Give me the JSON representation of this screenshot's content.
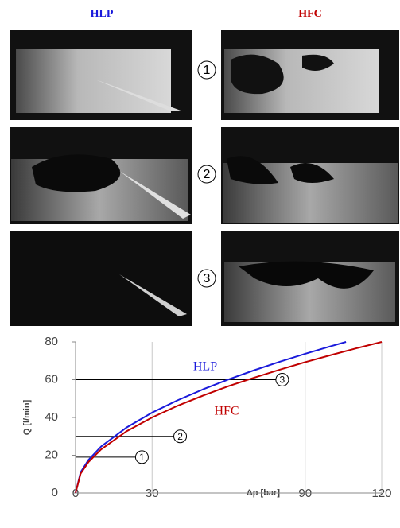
{
  "figure": {
    "columns": [
      "HLP",
      "HFC"
    ],
    "rows": [
      "1",
      "2",
      "3"
    ]
  },
  "chart_data": {
    "type": "line",
    "xlabel": "Δp [bar]",
    "ylabel": "Q [l/min]",
    "xlim": [
      0,
      120
    ],
    "xticks": [
      0,
      30,
      90,
      120
    ],
    "ylim": [
      0,
      80
    ],
    "yticks": [
      0,
      20,
      40,
      60,
      80
    ],
    "grid": "x",
    "series": [
      {
        "name": "HLP",
        "color": "#1a1adb",
        "x": [
          0,
          2,
          5,
          10,
          20,
          30,
          40,
          50,
          60,
          70,
          80,
          90,
          100,
          106
        ],
        "values": [
          0,
          11.0,
          17.4,
          24.6,
          34.7,
          42.6,
          49.1,
          54.9,
          60.2,
          65.0,
          69.5,
          73.7,
          77.7,
          80
        ]
      },
      {
        "name": "HFC",
        "color": "#c00000",
        "x": [
          0,
          2,
          5,
          10,
          20,
          30,
          40,
          50,
          60,
          70,
          80,
          90,
          100,
          110,
          120
        ],
        "values": [
          0,
          10.3,
          16.3,
          23.1,
          32.7,
          40,
          46.2,
          51.6,
          56.6,
          61.1,
          65.3,
          69.3,
          73.0,
          76.6,
          80
        ]
      }
    ],
    "annotations": [
      {
        "label": "1",
        "x": 26,
        "y": 19
      },
      {
        "label": "2",
        "x": 41,
        "y": 30
      },
      {
        "label": "3",
        "x": 81,
        "y": 60
      }
    ]
  }
}
